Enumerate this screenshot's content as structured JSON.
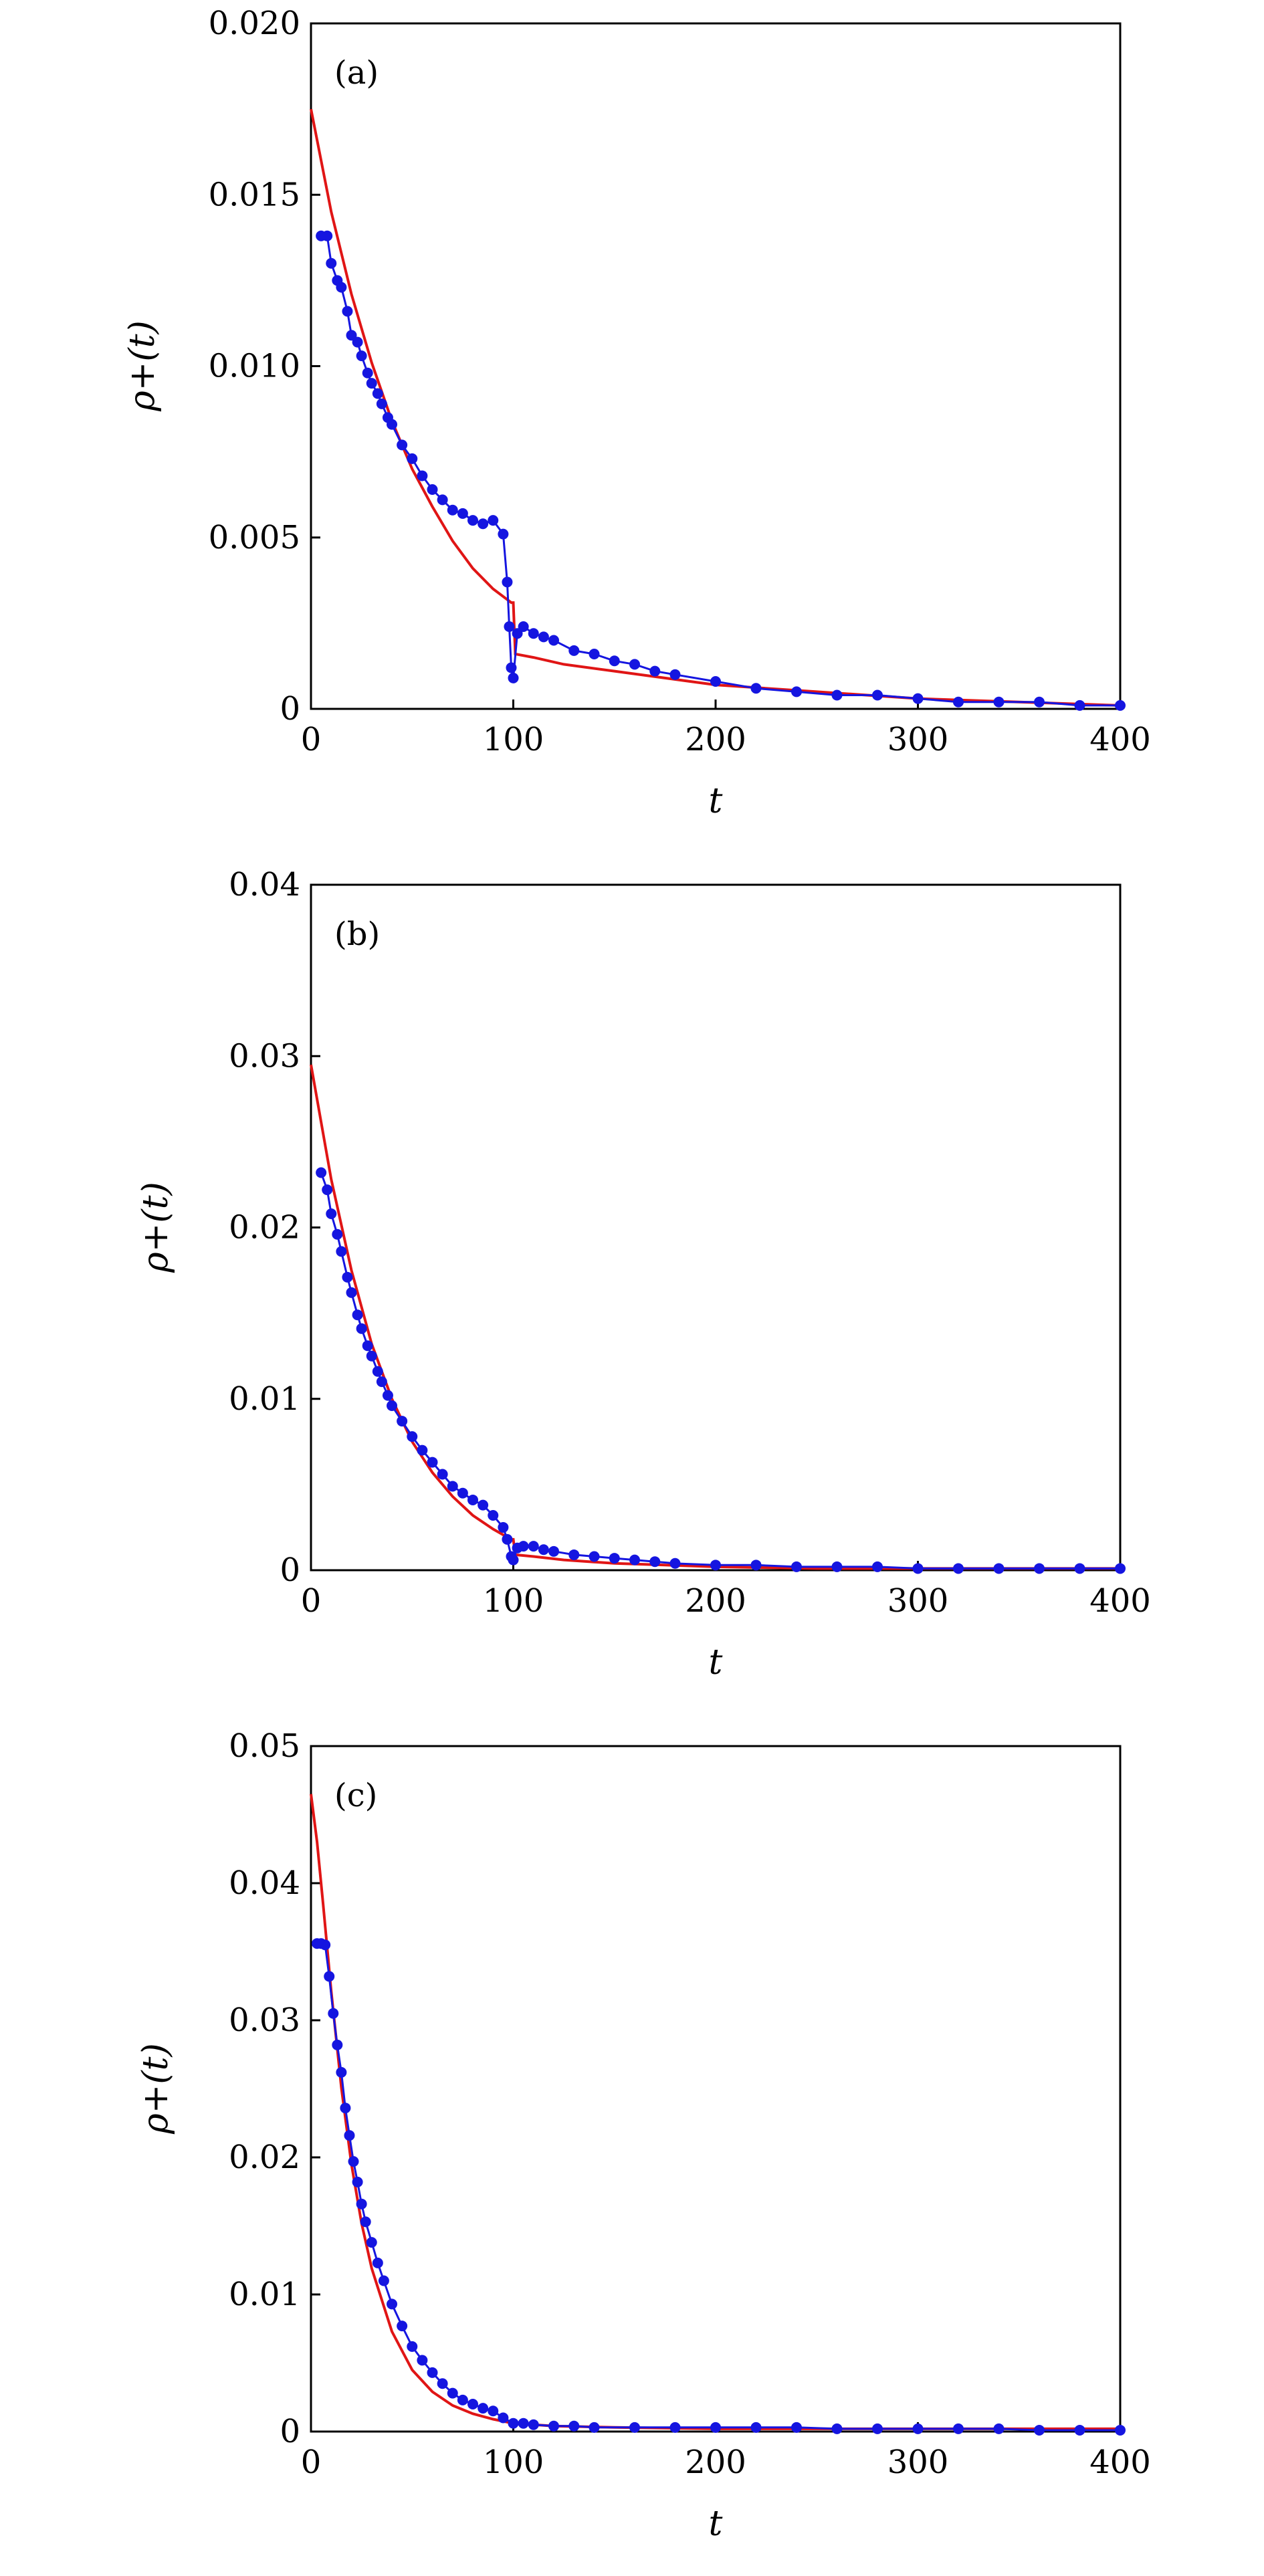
{
  "colors": {
    "data": "#1515e0",
    "fit": "#e01515",
    "axes": "#000000"
  },
  "chart_data": [
    {
      "type": "line",
      "panel_label": "(a)",
      "xlabel": "t",
      "ylabel": "ρ+(t)",
      "xlim": [
        0,
        400
      ],
      "ylim": [
        0,
        0.02
      ],
      "xticks": [
        0,
        100,
        200,
        300,
        400
      ],
      "xtick_labels": [
        "0",
        "100",
        "200",
        "300",
        "400"
      ],
      "yticks": [
        0,
        0.005,
        0.01,
        0.015,
        0.02
      ],
      "ytick_labels": [
        "0",
        "0.005",
        "0.010",
        "0.015",
        "0.020"
      ],
      "grid": false,
      "series": [
        {
          "kind": "markers",
          "color": "#1515e0",
          "x": [
            5,
            8,
            10,
            13,
            15,
            18,
            20,
            23,
            25,
            28,
            30,
            33,
            35,
            38,
            40,
            45,
            50,
            55,
            60,
            65,
            70,
            75,
            80,
            85,
            90,
            95,
            97,
            98,
            99,
            100,
            102,
            105,
            110,
            115,
            120,
            130,
            140,
            150,
            160,
            170,
            180,
            200,
            220,
            240,
            260,
            280,
            300,
            320,
            340,
            360,
            380,
            400
          ],
          "y": [
            0.0138,
            0.0138,
            0.013,
            0.0125,
            0.0123,
            0.0116,
            0.0109,
            0.0107,
            0.0103,
            0.0098,
            0.0095,
            0.0092,
            0.0089,
            0.0085,
            0.0083,
            0.0077,
            0.0073,
            0.0068,
            0.0064,
            0.0061,
            0.0058,
            0.0057,
            0.0055,
            0.0054,
            0.0055,
            0.0051,
            0.0037,
            0.0024,
            0.0012,
            0.0009,
            0.0022,
            0.0024,
            0.0022,
            0.0021,
            0.002,
            0.0017,
            0.0016,
            0.0014,
            0.0013,
            0.0011,
            0.001,
            0.0008,
            0.0006,
            0.0005,
            0.0004,
            0.0004,
            0.0003,
            0.0002,
            0.0002,
            0.0002,
            0.0001,
            0.0001
          ]
        },
        {
          "kind": "fit",
          "color": "#e01515",
          "x": [
            0,
            10,
            20,
            30,
            40,
            50,
            60,
            70,
            80,
            90,
            99,
            100,
            101,
            110,
            125,
            150,
            175,
            200,
            250,
            300,
            350,
            400
          ],
          "y": [
            0.0175,
            0.0145,
            0.0121,
            0.0101,
            0.0084,
            0.007,
            0.0059,
            0.0049,
            0.0041,
            0.0035,
            0.0031,
            0.0031,
            0.0016,
            0.0015,
            0.0013,
            0.0011,
            0.0009,
            0.0007,
            0.0005,
            0.0003,
            0.0002,
            0.0001
          ]
        }
      ]
    },
    {
      "type": "line",
      "panel_label": "(b)",
      "xlabel": "t",
      "ylabel": "ρ+(t)",
      "xlim": [
        0,
        400
      ],
      "ylim": [
        0,
        0.04
      ],
      "xticks": [
        0,
        100,
        200,
        300,
        400
      ],
      "xtick_labels": [
        "0",
        "100",
        "200",
        "300",
        "400"
      ],
      "yticks": [
        0,
        0.01,
        0.02,
        0.03,
        0.04
      ],
      "ytick_labels": [
        "0",
        "0.01",
        "0.02",
        "0.03",
        "0.04"
      ],
      "grid": false,
      "series": [
        {
          "kind": "markers",
          "color": "#1515e0",
          "x": [
            5,
            8,
            10,
            13,
            15,
            18,
            20,
            23,
            25,
            28,
            30,
            33,
            35,
            38,
            40,
            45,
            50,
            55,
            60,
            65,
            70,
            75,
            80,
            85,
            90,
            95,
            97,
            99,
            100,
            102,
            105,
            110,
            115,
            120,
            130,
            140,
            150,
            160,
            170,
            180,
            200,
            220,
            240,
            260,
            280,
            300,
            320,
            340,
            360,
            380,
            400
          ],
          "y": [
            0.0232,
            0.0222,
            0.0208,
            0.0196,
            0.0186,
            0.0171,
            0.0162,
            0.0149,
            0.0141,
            0.0131,
            0.0125,
            0.0116,
            0.011,
            0.0102,
            0.0096,
            0.0087,
            0.0078,
            0.007,
            0.0063,
            0.0056,
            0.0049,
            0.0045,
            0.0041,
            0.0038,
            0.0032,
            0.0025,
            0.0018,
            0.0008,
            0.0006,
            0.0013,
            0.0014,
            0.0014,
            0.0012,
            0.0011,
            0.0009,
            0.0008,
            0.0007,
            0.0006,
            0.0005,
            0.0004,
            0.0003,
            0.0003,
            0.0002,
            0.0002,
            0.0002,
            0.0001,
            0.0001,
            0.0001,
            0.0001,
            0.0001,
            0.0001
          ]
        },
        {
          "kind": "fit",
          "color": "#e01515",
          "x": [
            0,
            10,
            20,
            30,
            40,
            50,
            60,
            70,
            80,
            90,
            99,
            100,
            101,
            110,
            125,
            150,
            175,
            200,
            250,
            300,
            350,
            400
          ],
          "y": [
            0.0295,
            0.0228,
            0.0175,
            0.0132,
            0.01,
            0.0075,
            0.0057,
            0.0043,
            0.0032,
            0.0024,
            0.0018,
            0.0018,
            0.0009,
            0.0008,
            0.0006,
            0.0004,
            0.0003,
            0.0002,
            0.0001,
            0.0001,
            0.0001,
            0.0001
          ]
        }
      ]
    },
    {
      "type": "line",
      "panel_label": "(c)",
      "xlabel": "t",
      "ylabel": "ρ+(t)",
      "xlim": [
        0,
        400
      ],
      "ylim": [
        0,
        0.05
      ],
      "xticks": [
        0,
        100,
        200,
        300,
        400
      ],
      "xtick_labels": [
        "0",
        "100",
        "200",
        "300",
        "400"
      ],
      "yticks": [
        0,
        0.01,
        0.02,
        0.03,
        0.04,
        0.05
      ],
      "ytick_labels": [
        "0",
        "0.01",
        "0.02",
        "0.03",
        "0.04",
        "0.05"
      ],
      "grid": false,
      "series": [
        {
          "kind": "markers",
          "color": "#1515e0",
          "x": [
            3,
            5,
            7,
            9,
            11,
            13,
            15,
            17,
            19,
            21,
            23,
            25,
            27,
            30,
            33,
            36,
            40,
            45,
            50,
            55,
            60,
            65,
            70,
            75,
            80,
            85,
            90,
            95,
            100,
            105,
            110,
            120,
            130,
            140,
            160,
            180,
            200,
            220,
            240,
            260,
            280,
            300,
            320,
            340,
            360,
            380,
            400
          ],
          "y": [
            0.0356,
            0.0356,
            0.0355,
            0.0332,
            0.0305,
            0.0282,
            0.0262,
            0.0236,
            0.0216,
            0.0197,
            0.0182,
            0.0166,
            0.0153,
            0.0138,
            0.0123,
            0.011,
            0.0093,
            0.0077,
            0.0062,
            0.0052,
            0.0043,
            0.0035,
            0.0028,
            0.0023,
            0.002,
            0.0017,
            0.0015,
            0.001,
            0.0006,
            0.0006,
            0.0005,
            0.0004,
            0.0004,
            0.0003,
            0.0003,
            0.0003,
            0.0003,
            0.0003,
            0.0003,
            0.0002,
            0.0002,
            0.0002,
            0.0002,
            0.0002,
            0.0001,
            0.0001,
            0.0001
          ]
        },
        {
          "kind": "fit",
          "color": "#e01515",
          "x": [
            0,
            3,
            6,
            10,
            15,
            20,
            25,
            30,
            40,
            50,
            60,
            70,
            80,
            90,
            100,
            120,
            150,
            200,
            300,
            400
          ],
          "y": [
            0.0465,
            0.043,
            0.0385,
            0.0321,
            0.0251,
            0.0195,
            0.0152,
            0.0119,
            0.0073,
            0.0045,
            0.0029,
            0.0019,
            0.0013,
            0.0009,
            0.0006,
            0.0004,
            0.0003,
            0.0002,
            0.0002,
            0.0002
          ]
        }
      ]
    }
  ]
}
